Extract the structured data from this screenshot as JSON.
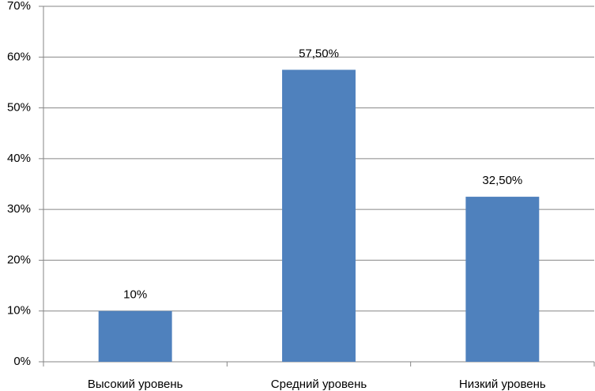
{
  "chart_data": {
    "type": "bar",
    "categories": [
      "Высокий уровень",
      "Средний уровень",
      "Низкий уровень"
    ],
    "values": [
      10,
      57.5,
      32.5
    ],
    "value_labels": [
      "10%",
      "57,50%",
      "32,50%"
    ],
    "color": "#4f81bd",
    "ylim": [
      0,
      70
    ],
    "yticks": [
      {
        "value": 0,
        "label": "0%"
      },
      {
        "value": 10,
        "label": "10%"
      },
      {
        "value": 20,
        "label": "20%"
      },
      {
        "value": 30,
        "label": "30%"
      },
      {
        "value": 40,
        "label": "40%"
      },
      {
        "value": 50,
        "label": "50%"
      },
      {
        "value": 60,
        "label": "60%"
      },
      {
        "value": 70,
        "label": "70%"
      }
    ],
    "grid": true
  }
}
